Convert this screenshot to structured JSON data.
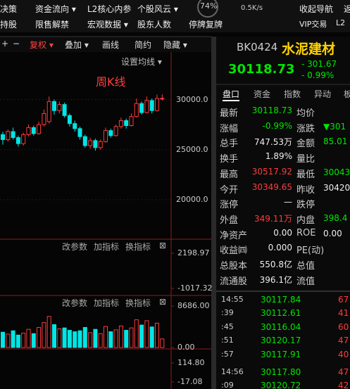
{
  "nav": {
    "row1": [
      "决策",
      "资金流向 ▾",
      "L2核心内参",
      "个股风云 ▾",
      "收起导航",
      "返"
    ],
    "row2": [
      "持股",
      "限售解禁",
      "宏观数据 ▾",
      "股东人数",
      "停牌复牌",
      "VIP交易",
      "L2"
    ]
  },
  "status": {
    "cpu": "74%",
    "speed": "0.5K/s"
  },
  "toolbar": {
    "items": [
      "+",
      "−",
      "复权 ▾",
      "叠加 ▾",
      "画线",
      "简约",
      "隐藏 ▾"
    ],
    "ma_setting": "设置均线 ▾",
    "period": "周K线"
  },
  "kline": {
    "ylim": [
      16200,
      34600
    ],
    "yticks": [
      {
        "value": 30000,
        "label": "30000.0"
      },
      {
        "value": 25000,
        "label": "25000.0"
      },
      {
        "value": 20000,
        "label": "20000.0"
      }
    ],
    "open": [
      26500,
      26000,
      26800,
      26200,
      25600,
      26500,
      27200,
      26600,
      27500,
      27800,
      29800,
      28900,
      29500,
      28400,
      27600,
      27100,
      26300,
      25400,
      25900,
      25200,
      25800,
      26900,
      26400,
      27300,
      27900,
      27400,
      28300,
      29600,
      28700,
      29900,
      28900,
      30100
    ],
    "high": [
      26800,
      27000,
      27200,
      26400,
      26700,
      27500,
      27400,
      27800,
      29000,
      30300,
      30000,
      29800,
      29700,
      28600,
      27900,
      27300,
      26500,
      26200,
      26100,
      26000,
      27200,
      27100,
      27500,
      28200,
      28100,
      28600,
      30100,
      29800,
      30300,
      30100,
      30500,
      30517.92
    ],
    "low": [
      25500,
      25800,
      26000,
      25300,
      25400,
      26300,
      26400,
      26500,
      27300,
      27600,
      28500,
      28600,
      28200,
      27300,
      26800,
      26000,
      25200,
      25100,
      24900,
      25000,
      25700,
      26200,
      26300,
      27100,
      27100,
      27300,
      28200,
      28500,
      28600,
      28600,
      28800,
      29900
    ],
    "close": [
      26000,
      26800,
      26200,
      25600,
      26500,
      27200,
      26600,
      27500,
      28600,
      29800,
      28900,
      29500,
      28400,
      27600,
      27100,
      26300,
      25400,
      25900,
      25200,
      25800,
      26900,
      26400,
      27300,
      27900,
      27400,
      28300,
      29600,
      28700,
      29900,
      28900,
      30100,
      30118.73
    ]
  },
  "panels": [
    {
      "buttons": [
        "改参数",
        "加指标",
        "换指标",
        "⊠"
      ],
      "yticks": [
        2198.97,
        -1017.32
      ]
    },
    {
      "buttons": [
        "改参数",
        "加指标",
        "换指标",
        "⊠"
      ],
      "yticks": [
        {
          "value": 8686,
          "label": "8686.00"
        },
        {
          "value": 0,
          "label": "0.00"
        }
      ],
      "ylim": [
        0,
        10600
      ],
      "volume": [
        3200,
        2800,
        3500,
        2600,
        3000,
        3800,
        2900,
        4200,
        5200,
        6500,
        4800,
        3900,
        4100,
        3600,
        3300,
        3500,
        4200,
        3100,
        3800,
        2900,
        4400,
        3300,
        3700,
        4500,
        3600,
        4100,
        5800,
        4700,
        5600,
        4300,
        5100,
        1800
      ]
    },
    {
      "buttons": [],
      "yticks": [
        {
          "value": 114.8,
          "label": "114.80"
        },
        -17.08
      ]
    }
  ],
  "quote": {
    "code": "BK0424",
    "name": "水泥建材",
    "price": "30118.73",
    "change": "- 301.67",
    "pct": "- 0.99%",
    "tabs": [
      "盘口",
      "资金",
      "指数",
      "异动",
      "板"
    ],
    "rows": [
      [
        "最新",
        "30118.73",
        "均价",
        ""
      ],
      [
        "涨幅",
        "-0.99%",
        "涨跌",
        "▼301"
      ],
      [
        "总手",
        "747.53万",
        "金额",
        "85.01"
      ],
      [
        "换手",
        "1.89%",
        "量比",
        ""
      ],
      [
        "最高",
        "30517.92",
        "最低",
        "30043"
      ],
      [
        "今开",
        "30349.65",
        "昨收",
        "30420"
      ],
      [
        "涨停",
        "—",
        "跌停",
        ""
      ],
      [
        "外盘",
        "349.11万",
        "内盘",
        "398.4"
      ],
      [
        "净资产",
        "0.00",
        "ROE",
        "0.00"
      ],
      [
        "收益㈣",
        "0.000",
        "PE(动)",
        ""
      ],
      [
        "总股本",
        "550.8亿",
        "总值",
        ""
      ],
      [
        "流通股",
        "396.1亿",
        "流值",
        ""
      ]
    ],
    "ticks": [
      [
        "14:55",
        "30117.84",
        "67"
      ],
      [
        ":39",
        "30112.61",
        "41"
      ],
      [
        ":45",
        "30116.04",
        "60"
      ],
      [
        ":51",
        "30120.17",
        "47"
      ],
      [
        ":57",
        "30117.91",
        "40"
      ],
      [
        "14:56",
        "30117.80",
        "47"
      ],
      [
        ":09",
        "30120.72",
        "42"
      ]
    ]
  }
}
